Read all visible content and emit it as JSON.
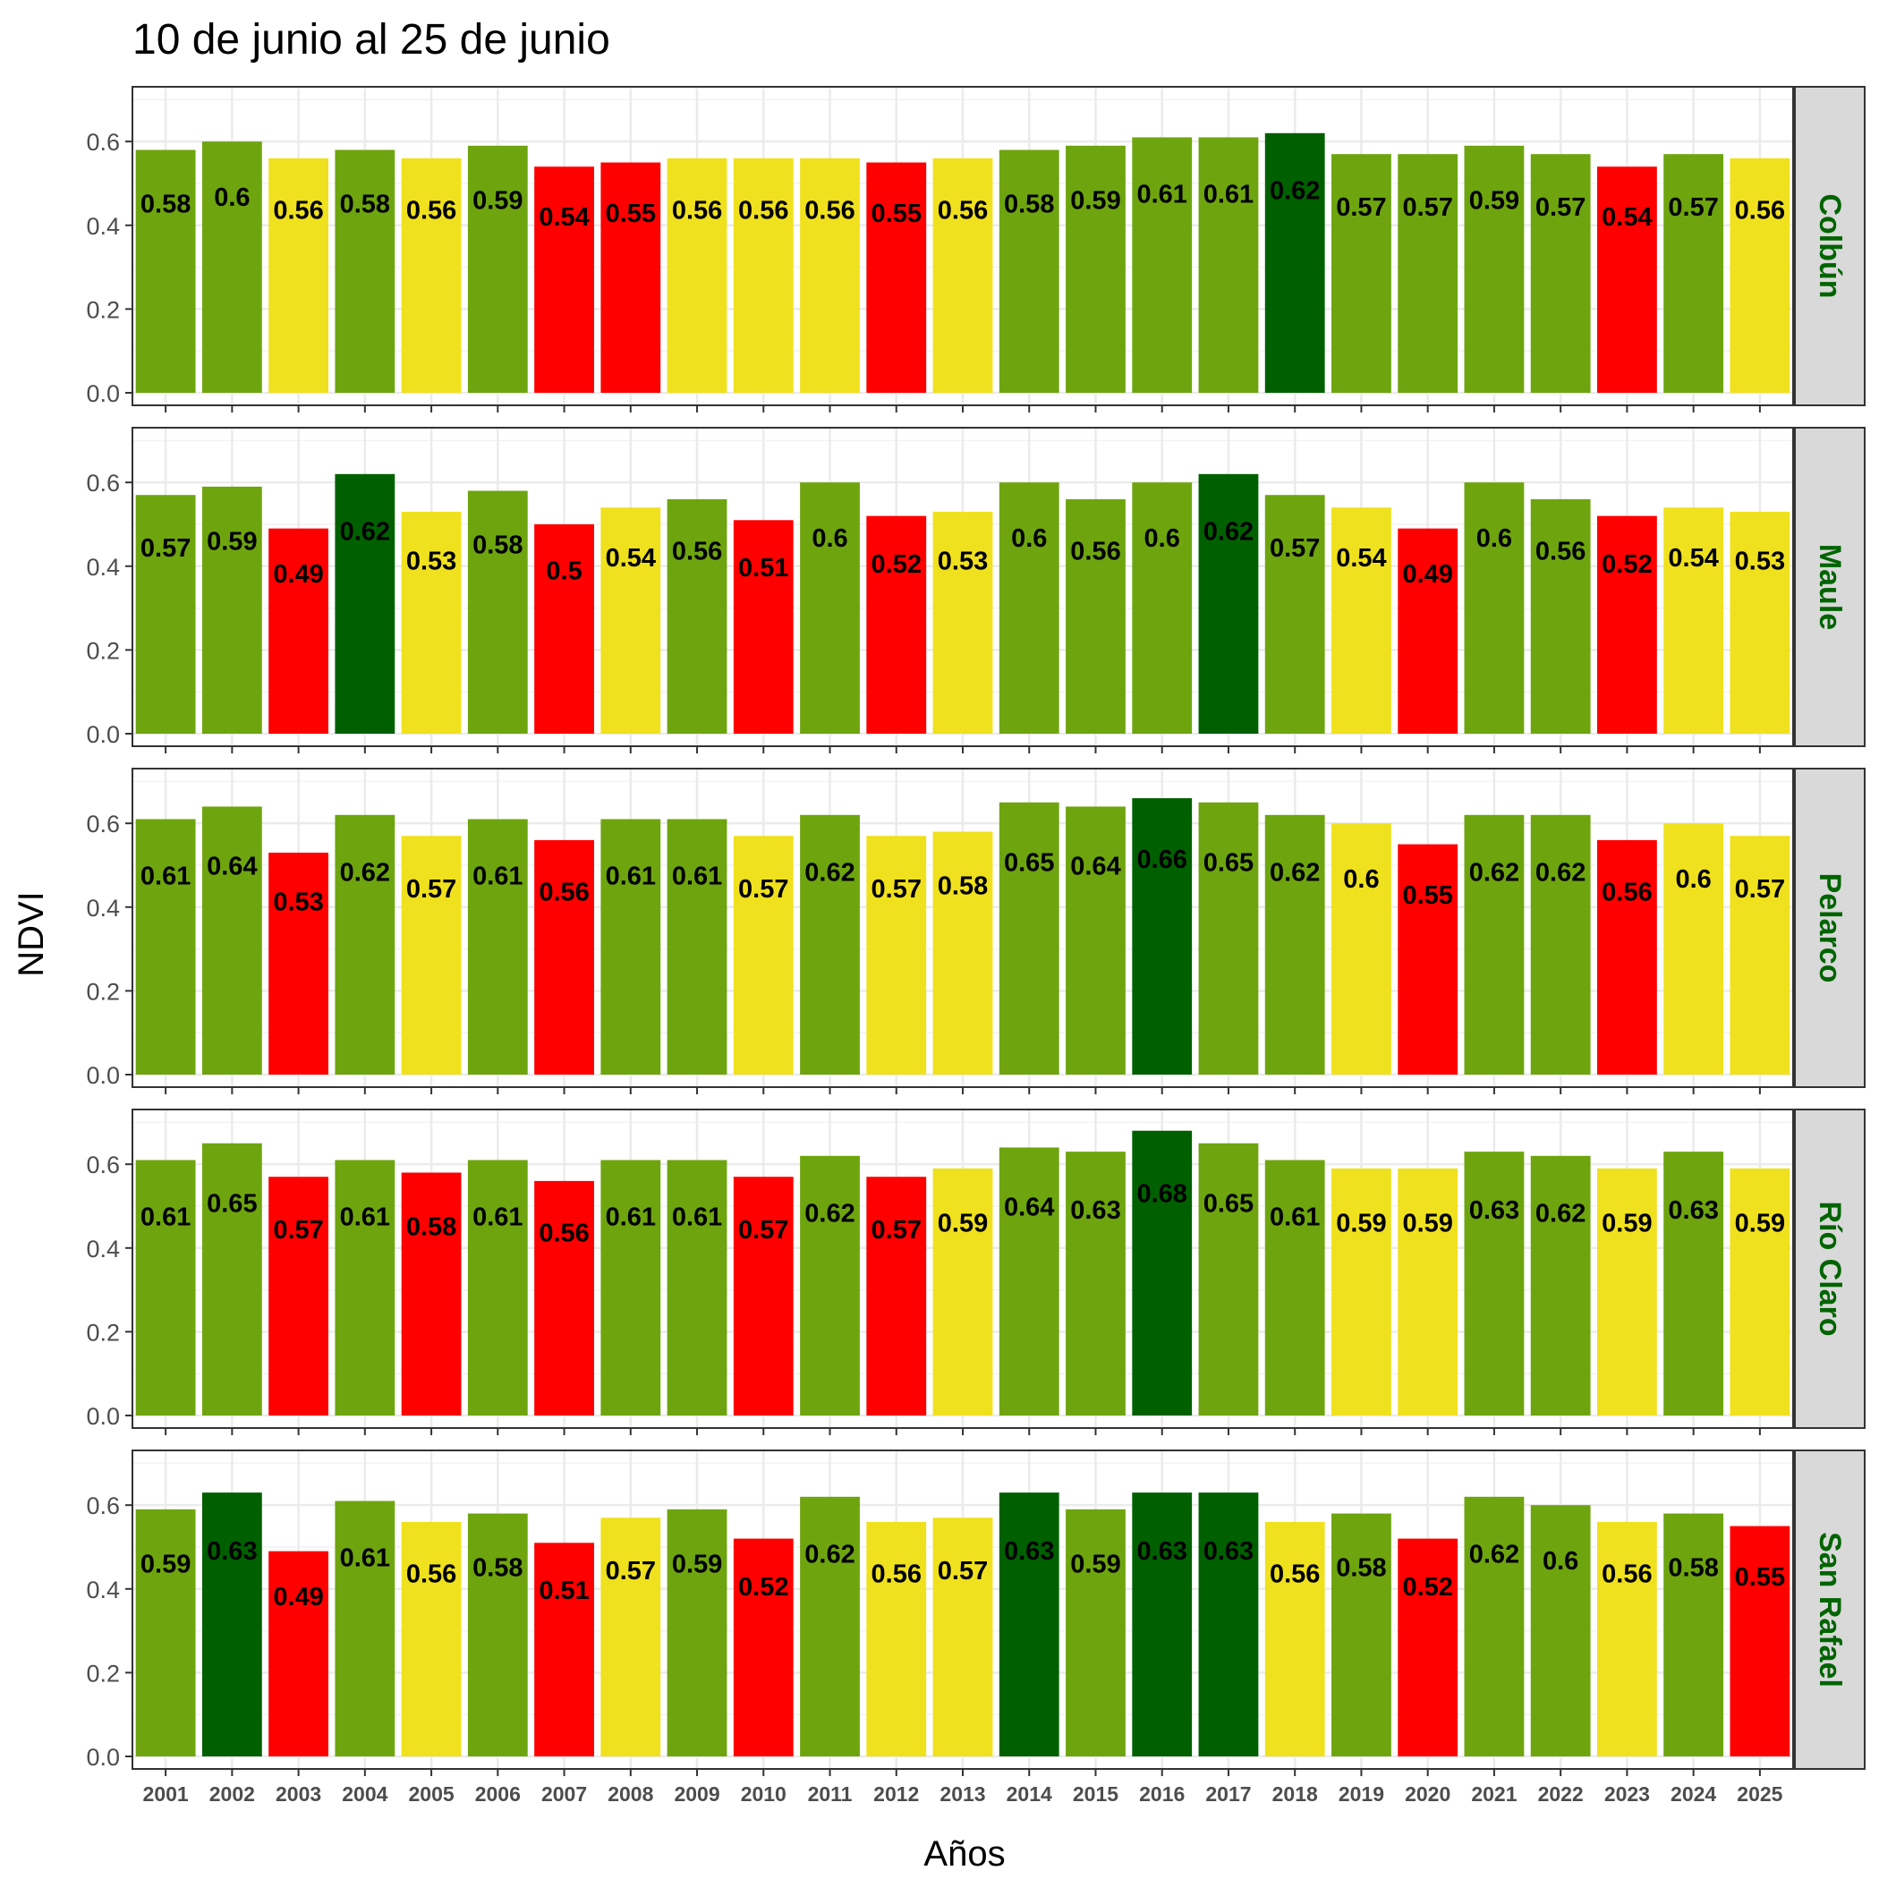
{
  "chart_data": {
    "type": "bar",
    "title": "10 de junio al 25 de junio",
    "xlabel": "Años",
    "ylabel": "NDVI",
    "ylim": [
      0,
      0.72
    ],
    "yticks": [
      "0.0",
      "0.2",
      "0.4",
      "0.6"
    ],
    "ytick_values": [
      0,
      0.2,
      0.4,
      0.6
    ],
    "grid": true,
    "categories": [
      "2001",
      "2002",
      "2003",
      "2004",
      "2005",
      "2006",
      "2007",
      "2008",
      "2009",
      "2010",
      "2011",
      "2012",
      "2013",
      "2014",
      "2015",
      "2016",
      "2017",
      "2018",
      "2019",
      "2020",
      "2021",
      "2022",
      "2023",
      "2024",
      "2025"
    ],
    "colors": {
      "red": "#ff0000",
      "yellow": "#f0e11e",
      "green": "#6ea50f",
      "dark_green": "#006000"
    },
    "panels": [
      {
        "name": "Colbún",
        "values": [
          0.58,
          0.6,
          0.56,
          0.58,
          0.56,
          0.59,
          0.54,
          0.55,
          0.56,
          0.56,
          0.56,
          0.55,
          0.56,
          0.58,
          0.59,
          0.61,
          0.61,
          0.62,
          0.57,
          0.57,
          0.59,
          0.57,
          0.54,
          0.57,
          0.56
        ],
        "labels": [
          "0.58",
          "0.6",
          "0.56",
          "0.58",
          "0.56",
          "0.59",
          "0.54",
          "0.55",
          "0.56",
          "0.56",
          "0.56",
          "0.55",
          "0.56",
          "0.58",
          "0.59",
          "0.61",
          "0.61",
          "0.62",
          "0.57",
          "0.57",
          "0.59",
          "0.57",
          "0.54",
          "0.57",
          "0.56"
        ],
        "classes": [
          "green",
          "green",
          "yellow",
          "green",
          "yellow",
          "green",
          "red",
          "red",
          "yellow",
          "yellow",
          "yellow",
          "red",
          "yellow",
          "green",
          "green",
          "green",
          "green",
          "dark_green",
          "green",
          "green",
          "green",
          "green",
          "red",
          "green",
          "yellow"
        ]
      },
      {
        "name": "Maule",
        "values": [
          0.57,
          0.59,
          0.49,
          0.62,
          0.53,
          0.58,
          0.5,
          0.54,
          0.56,
          0.51,
          0.6,
          0.52,
          0.53,
          0.6,
          0.56,
          0.6,
          0.62,
          0.57,
          0.54,
          0.49,
          0.6,
          0.56,
          0.52,
          0.54,
          0.53
        ],
        "labels": [
          "0.57",
          "0.59",
          "0.49",
          "0.62",
          "0.53",
          "0.58",
          "0.5",
          "0.54",
          "0.56",
          "0.51",
          "0.6",
          "0.52",
          "0.53",
          "0.6",
          "0.56",
          "0.6",
          "0.62",
          "0.57",
          "0.54",
          "0.49",
          "0.6",
          "0.56",
          "0.52",
          "0.54",
          "0.53"
        ],
        "classes": [
          "green",
          "green",
          "red",
          "dark_green",
          "yellow",
          "green",
          "red",
          "yellow",
          "green",
          "red",
          "green",
          "red",
          "yellow",
          "green",
          "green",
          "green",
          "dark_green",
          "green",
          "yellow",
          "red",
          "green",
          "green",
          "red",
          "yellow",
          "yellow"
        ]
      },
      {
        "name": "Pelarco",
        "values": [
          0.61,
          0.64,
          0.53,
          0.62,
          0.57,
          0.61,
          0.56,
          0.61,
          0.61,
          0.57,
          0.62,
          0.57,
          0.58,
          0.65,
          0.64,
          0.66,
          0.65,
          0.62,
          0.6,
          0.55,
          0.62,
          0.62,
          0.56,
          0.6,
          0.57
        ],
        "labels": [
          "0.61",
          "0.64",
          "0.53",
          "0.62",
          "0.57",
          "0.61",
          "0.56",
          "0.61",
          "0.61",
          "0.57",
          "0.62",
          "0.57",
          "0.58",
          "0.65",
          "0.64",
          "0.66",
          "0.65",
          "0.62",
          "0.6",
          "0.55",
          "0.62",
          "0.62",
          "0.56",
          "0.6",
          "0.57"
        ],
        "classes": [
          "green",
          "green",
          "red",
          "green",
          "yellow",
          "green",
          "red",
          "green",
          "green",
          "yellow",
          "green",
          "yellow",
          "yellow",
          "green",
          "green",
          "dark_green",
          "green",
          "green",
          "yellow",
          "red",
          "green",
          "green",
          "red",
          "yellow",
          "yellow"
        ]
      },
      {
        "name": "Río Claro",
        "values": [
          0.61,
          0.65,
          0.57,
          0.61,
          0.58,
          0.61,
          0.56,
          0.61,
          0.61,
          0.57,
          0.62,
          0.57,
          0.59,
          0.64,
          0.63,
          0.68,
          0.65,
          0.61,
          0.59,
          0.59,
          0.63,
          0.62,
          0.59,
          0.63,
          0.59
        ],
        "labels": [
          "0.61",
          "0.65",
          "0.57",
          "0.61",
          "0.58",
          "0.61",
          "0.56",
          "0.61",
          "0.61",
          "0.57",
          "0.62",
          "0.57",
          "0.59",
          "0.64",
          "0.63",
          "0.68",
          "0.65",
          "0.61",
          "0.59",
          "0.59",
          "0.63",
          "0.62",
          "0.59",
          "0.63",
          "0.59"
        ],
        "classes": [
          "green",
          "green",
          "red",
          "green",
          "red",
          "green",
          "red",
          "green",
          "green",
          "red",
          "green",
          "red",
          "yellow",
          "green",
          "green",
          "dark_green",
          "green",
          "green",
          "yellow",
          "yellow",
          "green",
          "green",
          "yellow",
          "green",
          "yellow"
        ]
      },
      {
        "name": "San Rafael",
        "values": [
          0.59,
          0.63,
          0.49,
          0.61,
          0.56,
          0.58,
          0.51,
          0.57,
          0.59,
          0.52,
          0.62,
          0.56,
          0.57,
          0.63,
          0.59,
          0.63,
          0.63,
          0.56,
          0.58,
          0.52,
          0.62,
          0.6,
          0.56,
          0.58,
          0.55
        ],
        "labels": [
          "0.59",
          "0.63",
          "0.49",
          "0.61",
          "0.56",
          "0.58",
          "0.51",
          "0.57",
          "0.59",
          "0.52",
          "0.62",
          "0.56",
          "0.57",
          "0.63",
          "0.59",
          "0.63",
          "0.63",
          "0.56",
          "0.58",
          "0.52",
          "0.62",
          "0.6",
          "0.56",
          "0.58",
          "0.55"
        ],
        "classes": [
          "green",
          "dark_green",
          "red",
          "green",
          "yellow",
          "green",
          "red",
          "yellow",
          "green",
          "red",
          "green",
          "yellow",
          "yellow",
          "dark_green",
          "green",
          "dark_green",
          "dark_green",
          "yellow",
          "green",
          "red",
          "green",
          "green",
          "yellow",
          "green",
          "red"
        ]
      }
    ]
  }
}
